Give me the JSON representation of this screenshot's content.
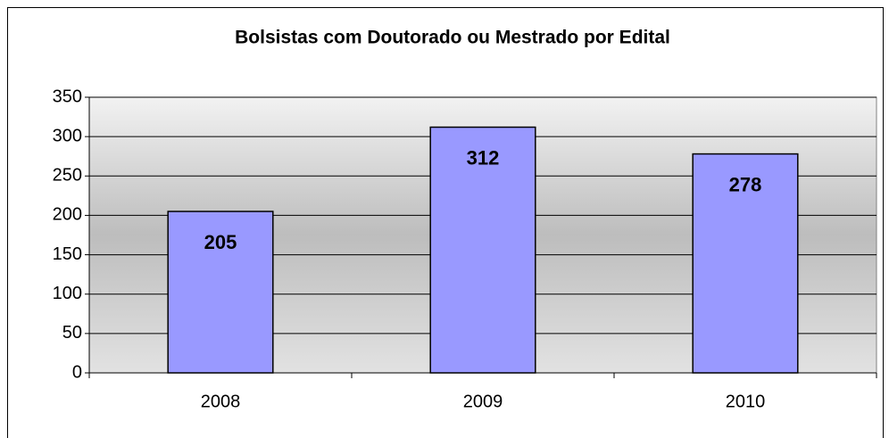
{
  "chart_data": {
    "type": "bar",
    "title": "Bolsistas com Doutorado ou Mestrado por Edital",
    "categories": [
      "2008",
      "2009",
      "2010"
    ],
    "values": [
      205,
      312,
      278
    ],
    "color": "#9999ff",
    "ylim": [
      0,
      350
    ],
    "yticks": [
      0,
      50,
      100,
      150,
      200,
      250,
      300,
      350
    ],
    "grid": true,
    "data_labels": true
  }
}
